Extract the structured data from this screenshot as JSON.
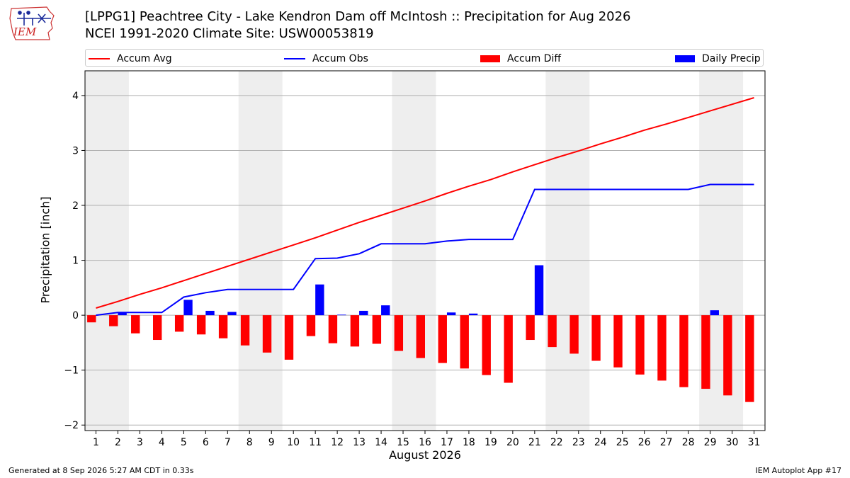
{
  "header": {
    "logo_text": "IEM",
    "title_line1": "[LPPG1] Peachtree City - Lake Kendron Dam off McIntosh :: Precipitation for Aug 2026",
    "title_line2": "NCEI 1991-2020 Climate Site: USW00053819"
  },
  "legend": {
    "accum_avg": "Accum Avg",
    "accum_obs": "Accum Obs",
    "accum_diff": "Accum Diff",
    "daily_precip": "Daily Precip"
  },
  "colors": {
    "accum_avg": "#ff0000",
    "accum_obs": "#0000ff",
    "accum_diff": "#ff0000",
    "daily_precip": "#0000ff",
    "weekend_shade": "#eeeeee",
    "grid": "#b0b0b0"
  },
  "footer": {
    "generated": "Generated at 8 Sep 2026 5:27 AM CDT in 0.33s",
    "app": "IEM Autoplot App #17"
  },
  "chart_data": {
    "type": "bar",
    "xlabel": "August 2026",
    "ylabel": "Precipitation [inch]",
    "xlim": [
      0.5,
      31.5
    ],
    "ylim": [
      -2.1,
      4.45
    ],
    "yticks": [
      -2,
      -1,
      0,
      1,
      2,
      3,
      4
    ],
    "ytick_labels": [
      "−2",
      "−1",
      "0",
      "1",
      "2",
      "3",
      "4"
    ],
    "grid": true,
    "legend_position": "top",
    "x": [
      1,
      2,
      3,
      4,
      5,
      6,
      7,
      8,
      9,
      10,
      11,
      12,
      13,
      14,
      15,
      16,
      17,
      18,
      19,
      20,
      21,
      22,
      23,
      24,
      25,
      26,
      27,
      28,
      29,
      30,
      31
    ],
    "weekend_spans": [
      [
        0.5,
        2.5
      ],
      [
        7.5,
        9.5
      ],
      [
        14.5,
        16.5
      ],
      [
        21.5,
        23.5
      ],
      [
        28.5,
        30.5
      ]
    ],
    "series": [
      {
        "name": "Accum Avg",
        "kind": "line",
        "values": [
          0.13,
          0.25,
          0.38,
          0.5,
          0.63,
          0.76,
          0.89,
          1.02,
          1.15,
          1.28,
          1.41,
          1.55,
          1.69,
          1.82,
          1.95,
          2.08,
          2.22,
          2.35,
          2.47,
          2.61,
          2.74,
          2.87,
          2.99,
          3.12,
          3.24,
          3.37,
          3.48,
          3.6,
          3.72,
          3.84,
          3.96
        ]
      },
      {
        "name": "Accum Obs",
        "kind": "line",
        "values": [
          0.0,
          0.05,
          0.05,
          0.05,
          0.33,
          0.41,
          0.47,
          0.47,
          0.47,
          0.47,
          1.03,
          1.04,
          1.12,
          1.3,
          1.3,
          1.3,
          1.35,
          1.38,
          1.38,
          1.38,
          2.29,
          2.29,
          2.29,
          2.29,
          2.29,
          2.29,
          2.29,
          2.29,
          2.38,
          2.38,
          2.38
        ]
      },
      {
        "name": "Accum Diff",
        "kind": "bar",
        "values": [
          -0.13,
          -0.2,
          -0.33,
          -0.45,
          -0.3,
          -0.35,
          -0.42,
          -0.55,
          -0.68,
          -0.81,
          -0.38,
          -0.51,
          -0.57,
          -0.52,
          -0.65,
          -0.78,
          -0.87,
          -0.97,
          -1.09,
          -1.23,
          -0.45,
          -0.58,
          -0.7,
          -0.83,
          -0.95,
          -1.08,
          -1.19,
          -1.31,
          -1.34,
          -1.46,
          -1.58
        ]
      },
      {
        "name": "Daily Precip",
        "kind": "bar",
        "values": [
          0.0,
          0.05,
          0.0,
          0.0,
          0.28,
          0.08,
          0.06,
          0.0,
          0.0,
          0.0,
          0.56,
          0.01,
          0.08,
          0.18,
          0.0,
          0.0,
          0.05,
          0.03,
          0.0,
          0.0,
          0.91,
          0.0,
          0.0,
          0.0,
          0.0,
          0.0,
          0.0,
          0.0,
          0.09,
          0.0,
          0.0
        ]
      }
    ]
  }
}
